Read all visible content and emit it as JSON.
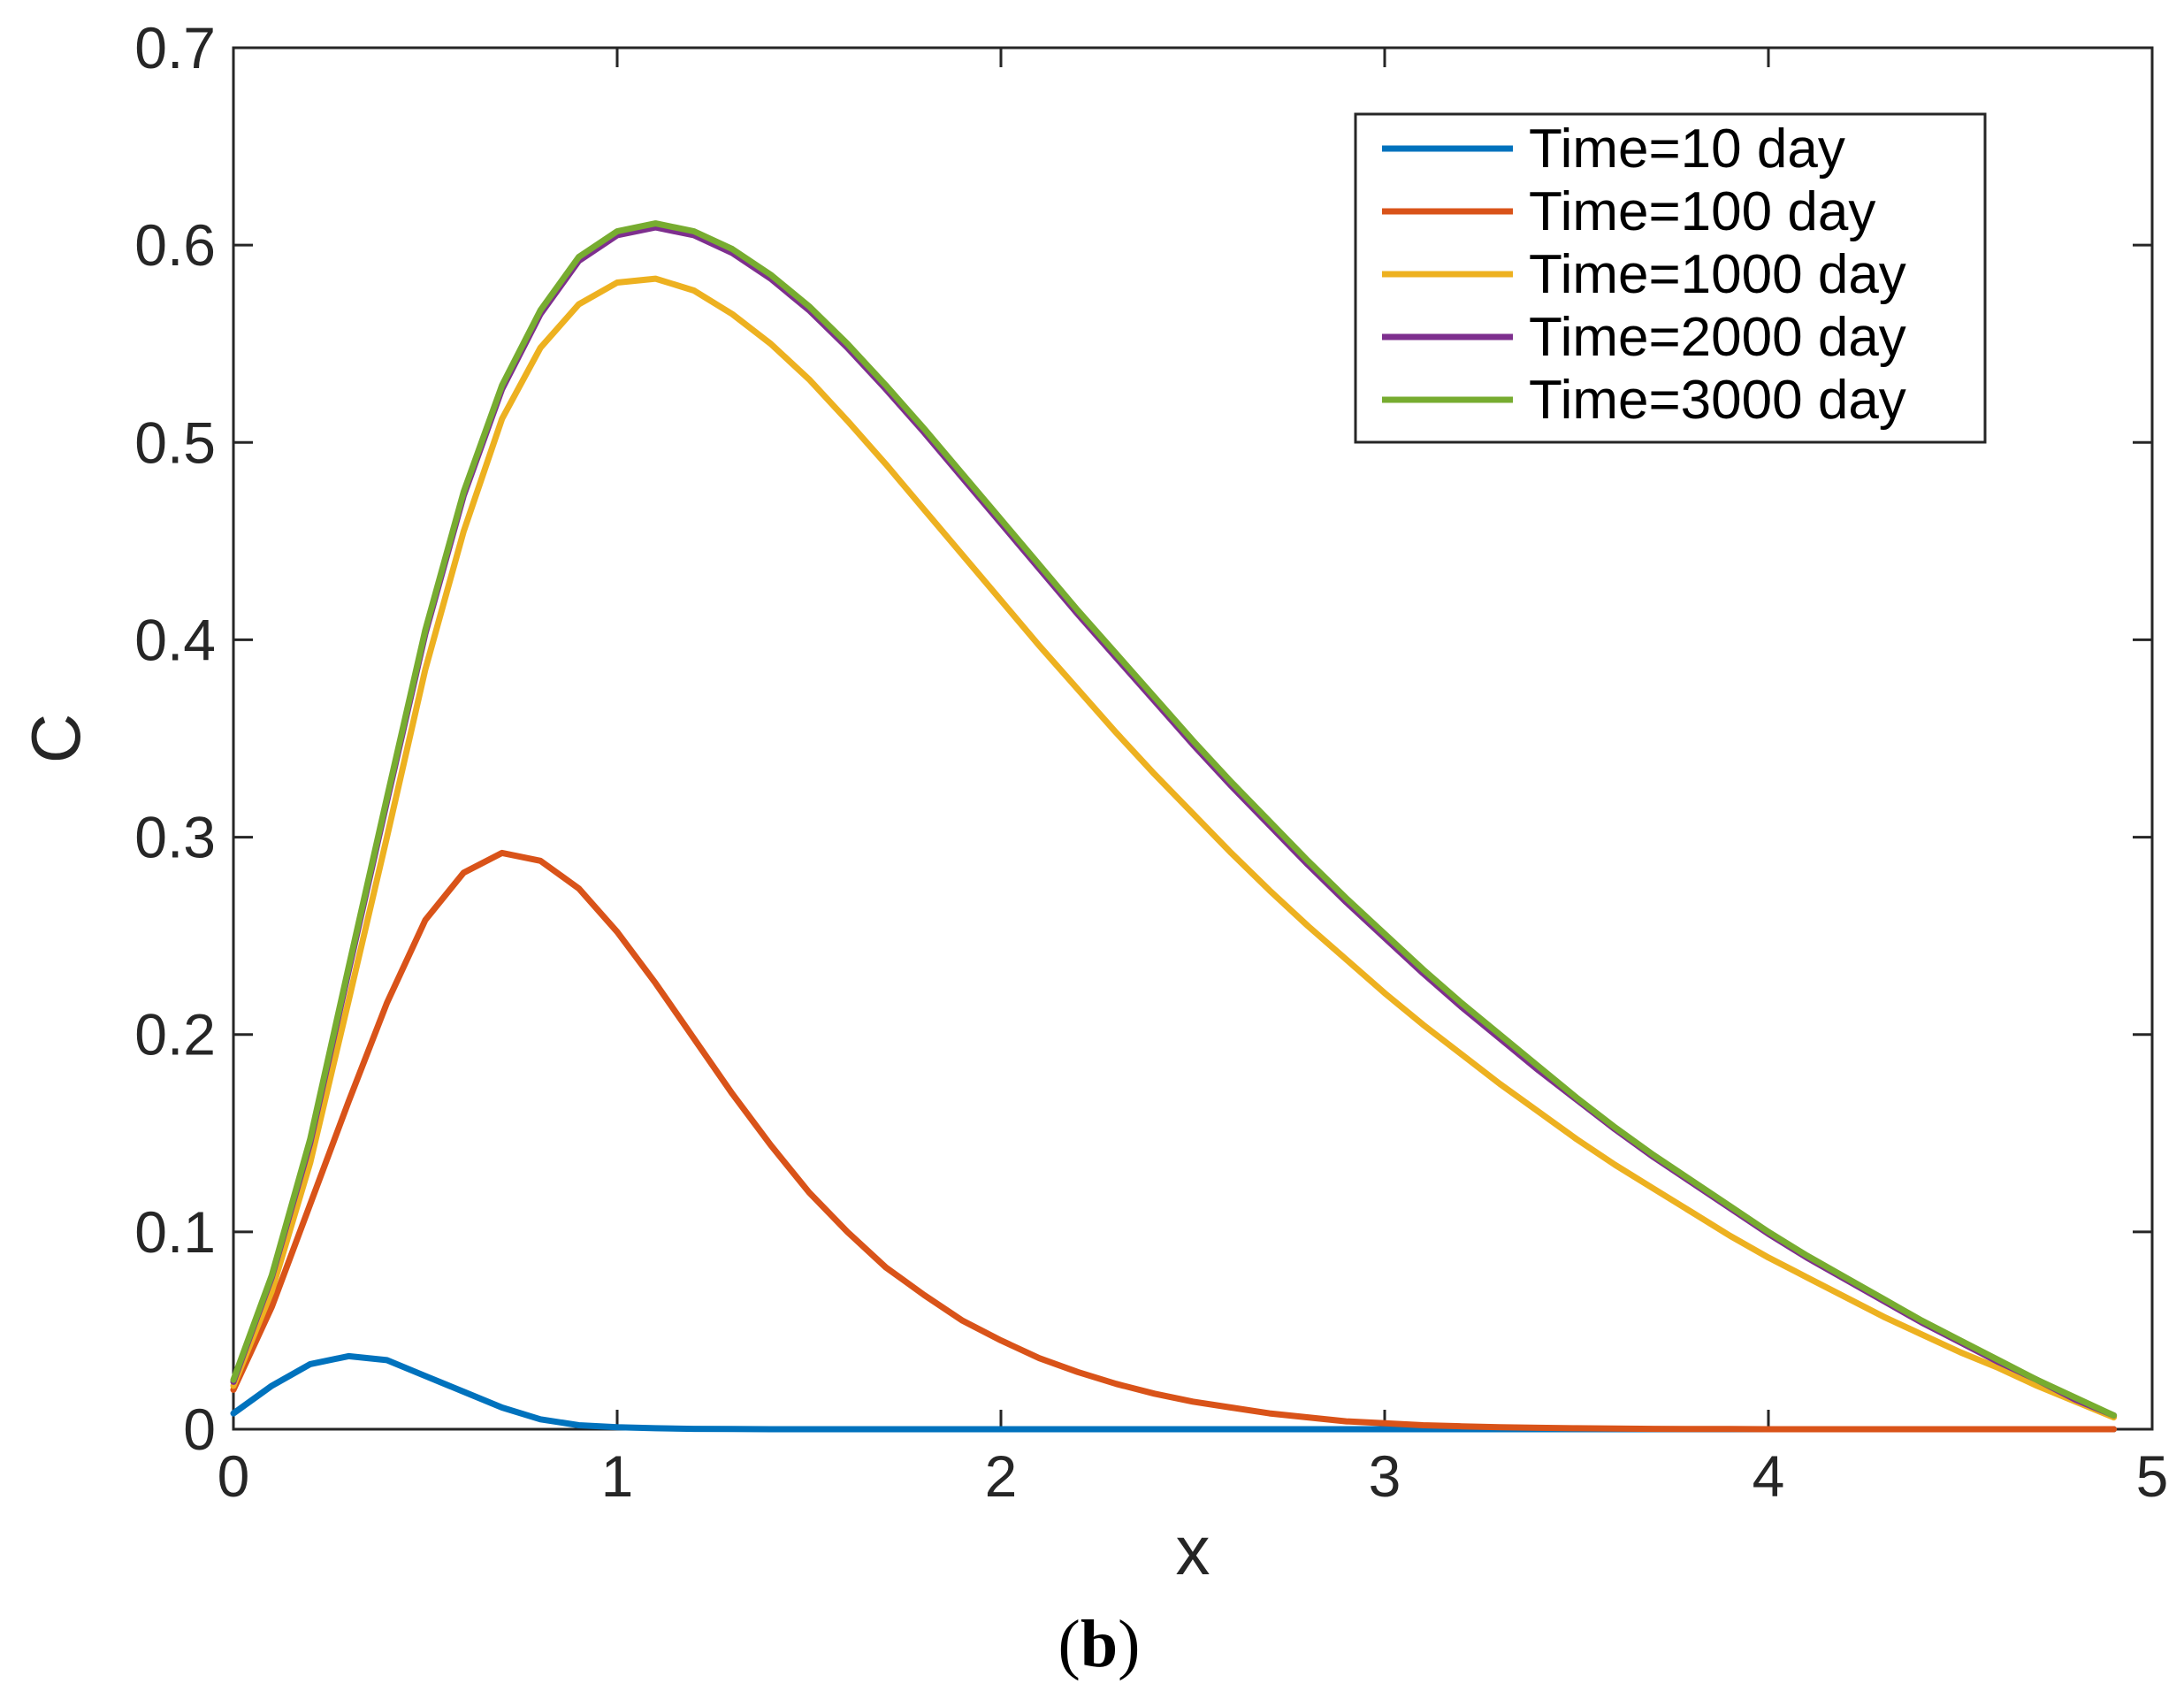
{
  "chart_data": {
    "type": "line",
    "title": "",
    "xlabel": "x",
    "ylabel": "C",
    "xlim": [
      0,
      5
    ],
    "ylim": [
      0,
      0.7
    ],
    "xticks": [
      "0",
      "1",
      "2",
      "3",
      "4",
      "5"
    ],
    "yticks": [
      "0",
      "0.1",
      "0.2",
      "0.3",
      "0.4",
      "0.5",
      "0.6",
      "0.7"
    ],
    "grid": false,
    "legend_position": "top-right",
    "caption": {
      "label": "b"
    },
    "x": [
      0,
      0.1,
      0.2,
      0.3,
      0.4,
      0.5,
      0.6,
      0.7,
      0.8,
      0.9,
      1.0,
      1.1,
      1.2,
      1.3,
      1.4,
      1.5,
      1.6,
      1.7,
      1.8,
      1.9,
      2.0,
      2.1,
      2.2,
      2.3,
      2.4,
      2.5,
      2.6,
      2.7,
      2.8,
      2.9,
      3.0,
      3.1,
      3.2,
      3.3,
      3.4,
      3.5,
      3.6,
      3.7,
      3.8,
      3.9,
      4.0,
      4.1,
      4.2,
      4.3,
      4.4,
      4.5,
      4.6,
      4.7,
      4.8,
      4.9
    ],
    "series": [
      {
        "name": "Time=10 day",
        "color": "#0072BD",
        "values": [
          0.008,
          0.022,
          0.033,
          0.037,
          0.035,
          0.027,
          0.019,
          0.011,
          0.005,
          0.002,
          0.001,
          0.0005,
          0.0002,
          0.0001,
          0,
          0,
          0,
          0,
          0,
          0,
          0,
          0,
          0,
          0,
          0,
          0,
          0,
          0,
          0,
          0,
          0,
          0,
          0,
          0,
          0,
          0,
          0,
          0,
          0,
          0,
          0,
          0,
          0,
          0,
          0,
          0,
          0,
          0,
          0,
          0
        ]
      },
      {
        "name": "Time=100 day",
        "color": "#D95319",
        "values": [
          0.02,
          0.062,
          0.114,
          0.166,
          0.216,
          0.258,
          0.282,
          0.292,
          0.288,
          0.274,
          0.252,
          0.226,
          0.198,
          0.17,
          0.144,
          0.12,
          0.1,
          0.082,
          0.068,
          0.055,
          0.045,
          0.036,
          0.029,
          0.023,
          0.018,
          0.014,
          0.011,
          0.008,
          0.006,
          0.004,
          0.003,
          0.002,
          0.0015,
          0.001,
          0.0007,
          0.0005,
          0.0003,
          0.0002,
          0.0001,
          0.0001,
          0,
          0,
          0,
          0,
          0,
          0,
          0,
          0,
          0,
          0
        ]
      },
      {
        "name": "Time=1000 day",
        "color": "#EDB120",
        "values": [
          0.022,
          0.07,
          0.135,
          0.217,
          0.3,
          0.385,
          0.455,
          0.512,
          0.548,
          0.57,
          0.581,
          0.583,
          0.577,
          0.565,
          0.55,
          0.532,
          0.511,
          0.489,
          0.466,
          0.443,
          0.42,
          0.397,
          0.375,
          0.353,
          0.332,
          0.312,
          0.292,
          0.273,
          0.255,
          0.238,
          0.221,
          0.205,
          0.19,
          0.175,
          0.161,
          0.147,
          0.134,
          0.122,
          0.11,
          0.098,
          0.087,
          0.077,
          0.067,
          0.057,
          0.048,
          0.039,
          0.031,
          0.022,
          0.014,
          0.006
        ]
      },
      {
        "name": "Time=2000 day",
        "color": "#7E2F8E",
        "values": [
          0.024,
          0.077,
          0.145,
          0.232,
          0.318,
          0.403,
          0.473,
          0.527,
          0.565,
          0.592,
          0.605,
          0.609,
          0.605,
          0.596,
          0.583,
          0.567,
          0.548,
          0.527,
          0.505,
          0.482,
          0.459,
          0.436,
          0.413,
          0.391,
          0.369,
          0.347,
          0.326,
          0.306,
          0.286,
          0.267,
          0.249,
          0.231,
          0.214,
          0.198,
          0.182,
          0.167,
          0.152,
          0.138,
          0.125,
          0.112,
          0.099,
          0.087,
          0.076,
          0.065,
          0.054,
          0.044,
          0.034,
          0.025,
          0.015,
          0.007
        ]
      },
      {
        "name": "Time=3000 day",
        "color": "#77AC30",
        "values": [
          0.025,
          0.078,
          0.147,
          0.234,
          0.32,
          0.405,
          0.475,
          0.529,
          0.567,
          0.594,
          0.607,
          0.611,
          0.607,
          0.598,
          0.585,
          0.569,
          0.55,
          0.529,
          0.507,
          0.484,
          0.461,
          0.438,
          0.415,
          0.393,
          0.371,
          0.349,
          0.328,
          0.308,
          0.288,
          0.269,
          0.251,
          0.233,
          0.216,
          0.2,
          0.184,
          0.168,
          0.153,
          0.139,
          0.126,
          0.113,
          0.1,
          0.088,
          0.077,
          0.066,
          0.055,
          0.045,
          0.035,
          0.025,
          0.016,
          0.007
        ]
      }
    ]
  }
}
